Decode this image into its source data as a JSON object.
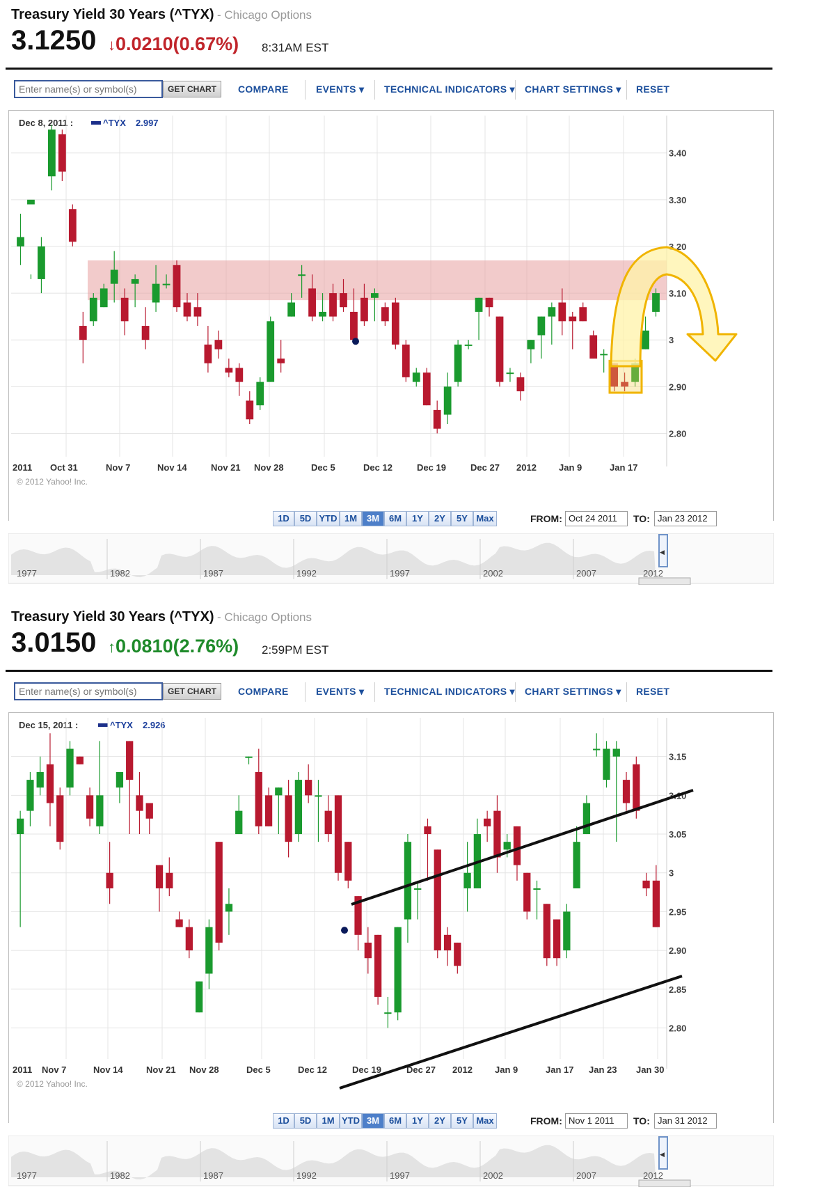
{
  "panels": [
    {
      "title": "Treasury Yield 30 Years (^TYX)",
      "source": "- Chicago Options",
      "price": "3.1250",
      "change_arrow": "↓",
      "change": "0.0210(0.67%)",
      "change_color": "#c0242a",
      "time": "8:31AM EST",
      "toolbar": {
        "search_placeholder": "Enter name(s) or symbol(s)",
        "get_chart": "GET CHART",
        "compare": "COMPARE",
        "events": "EVENTS ▾",
        "technical": "TECHNICAL INDICATORS ▾",
        "settings": "CHART SETTINGS ▾",
        "reset": "RESET"
      },
      "info_date": "Dec 8, 2011 :",
      "info_symbol": "^TYX",
      "info_value": "2.997",
      "copyright": "© 2012 Yahoo! Inc.",
      "x_labels": [
        "2011",
        "Oct 31",
        "Nov 7",
        "Nov 14",
        "Nov 21",
        "Nov 28",
        "Dec 5",
        "Dec 12",
        "Dec 19",
        "Dec 27",
        "2012",
        "Jan 9",
        "Jan 17"
      ],
      "y_ticks": [
        "3.40",
        "3.30",
        "3.20",
        "3.10",
        "3",
        "2.90",
        "2.80"
      ],
      "range_buttons": [
        "1D",
        "5D",
        "YTD",
        "1M",
        "3M",
        "6M",
        "1Y",
        "2Y",
        "5Y",
        "Max"
      ],
      "active_range": "3M",
      "from_label": "FROM:",
      "from_date": "Oct 24 2011",
      "to_label": "TO:",
      "to_date": "Jan 23 2012",
      "nav_years": [
        "1977",
        "1982",
        "1987",
        "1992",
        "1997",
        "2002",
        "2007",
        "2012"
      ]
    },
    {
      "title": "Treasury Yield 30 Years (^TYX)",
      "source": "- Chicago Options",
      "price": "3.0150",
      "change_arrow": "↑",
      "change": "0.0810(2.76%)",
      "change_color": "#1e8a2a",
      "time": "2:59PM EST",
      "toolbar": {
        "search_placeholder": "Enter name(s) or symbol(s)",
        "get_chart": "GET CHART",
        "compare": "COMPARE",
        "events": "EVENTS ▾",
        "technical": "TECHNICAL INDICATORS ▾",
        "settings": "CHART SETTINGS ▾",
        "reset": "RESET"
      },
      "info_date": "Dec 15, 2011 :",
      "info_symbol": "^TYX",
      "info_value": "2.926",
      "copyright": "© 2012 Yahoo! Inc.",
      "x_labels": [
        "2011",
        "Nov 7",
        "Nov 14",
        "Nov 21",
        "Nov 28",
        "Dec 5",
        "Dec 12",
        "Dec 19",
        "Dec 27",
        "2012",
        "Jan 9",
        "Jan 17",
        "Jan 23",
        "Jan 30"
      ],
      "y_ticks": [
        "3.15",
        "3.10",
        "3.05",
        "3",
        "2.95",
        "2.90",
        "2.85",
        "2.80"
      ],
      "range_buttons": [
        "1D",
        "5D",
        "1M",
        "YTD",
        "3M",
        "6M",
        "1Y",
        "2Y",
        "5Y",
        "Max"
      ],
      "active_range": "3M",
      "from_label": "FROM:",
      "from_date": "Nov 1 2011",
      "to_label": "TO:",
      "to_date": "Jan 31 2012",
      "nav_years": [
        "1977",
        "1982",
        "1987",
        "1992",
        "1997",
        "2002",
        "2007",
        "2012"
      ]
    }
  ],
  "colors": {
    "up": "#1a9a2e",
    "down": "#b8192f",
    "resistance_band": "#e8a0a0",
    "arrow": "#f0b400",
    "accent": "#1c4f9c"
  },
  "chart_data": [
    {
      "type": "candlestick",
      "x_range": [
        "2011-10-24",
        "2012-01-23"
      ],
      "y_range": [
        2.75,
        3.48
      ],
      "resistance_band": [
        3.085,
        3.17
      ],
      "candles": [
        [
          3.2,
          3.22,
          3.27,
          3.16
        ],
        [
          3.29,
          3.3,
          3.14,
          3.13
        ],
        [
          3.13,
          3.2,
          3.22,
          3.1
        ],
        [
          3.35,
          3.45,
          3.46,
          3.32
        ],
        [
          3.44,
          3.36,
          3.45,
          3.34
        ],
        [
          3.28,
          3.21,
          3.29,
          3.2
        ],
        [
          3.03,
          3.0,
          3.06,
          2.95
        ],
        [
          3.04,
          3.09,
          3.1,
          3.03
        ],
        [
          3.07,
          3.11,
          3.12,
          3.07
        ],
        [
          3.12,
          3.15,
          3.19,
          3.08
        ],
        [
          3.09,
          3.04,
          3.11,
          3.01
        ],
        [
          3.12,
          3.13,
          3.14,
          3.07
        ],
        [
          3.03,
          3.0,
          3.07,
          2.98
        ],
        [
          3.08,
          3.12,
          3.16,
          3.06
        ],
        [
          3.12,
          3.12,
          3.14,
          3.11
        ],
        [
          3.16,
          3.07,
          3.17,
          3.06
        ],
        [
          3.08,
          3.05,
          3.1,
          3.04
        ],
        [
          3.07,
          3.05,
          3.1,
          3.03
        ],
        [
          2.99,
          2.95,
          3.03,
          2.93
        ],
        [
          3.0,
          2.98,
          3.02,
          2.96
        ],
        [
          2.94,
          2.93,
          2.96,
          2.92
        ],
        [
          2.94,
          2.91,
          2.95,
          2.88
        ],
        [
          2.87,
          2.83,
          2.89,
          2.82
        ],
        [
          2.86,
          2.91,
          2.92,
          2.85
        ],
        [
          2.91,
          3.04,
          3.05,
          2.91
        ],
        [
          2.96,
          2.95,
          3.0,
          2.93
        ],
        [
          3.05,
          3.08,
          3.1,
          3.05
        ],
        [
          3.14,
          3.14,
          3.16,
          3.09
        ],
        [
          3.11,
          3.05,
          3.14,
          3.04
        ],
        [
          3.05,
          3.06,
          3.1,
          3.04
        ],
        [
          3.1,
          3.05,
          3.12,
          3.04
        ],
        [
          3.1,
          3.07,
          3.13,
          3.06
        ],
        [
          3.06,
          3.0,
          3.11,
          3.0
        ],
        [
          3.09,
          3.04,
          3.12,
          3.03
        ],
        [
          3.09,
          3.1,
          3.11,
          3.04
        ],
        [
          3.07,
          3.04,
          3.08,
          3.03
        ],
        [
          3.08,
          2.99,
          3.09,
          2.98
        ],
        [
          2.99,
          2.92,
          3.0,
          2.91
        ],
        [
          2.91,
          2.93,
          2.94,
          2.9
        ],
        [
          2.93,
          2.86,
          2.94,
          2.86
        ],
        [
          2.85,
          2.81,
          2.87,
          2.8
        ],
        [
          2.84,
          2.9,
          2.93,
          2.82
        ],
        [
          2.91,
          2.99,
          3.0,
          2.9
        ],
        [
          2.99,
          2.99,
          3.0,
          2.98
        ],
        [
          3.06,
          3.09,
          3.09,
          3.0
        ],
        [
          3.09,
          3.07,
          3.09,
          3.05
        ],
        [
          3.05,
          2.91,
          3.05,
          2.9
        ],
        [
          2.93,
          2.93,
          2.94,
          2.91
        ],
        [
          2.92,
          2.89,
          2.93,
          2.87
        ],
        [
          2.98,
          3.0,
          3.0,
          2.95
        ],
        [
          3.01,
          3.05,
          3.05,
          2.96
        ],
        [
          3.05,
          3.07,
          3.08,
          2.99
        ],
        [
          3.08,
          3.04,
          3.11,
          3.01
        ],
        [
          3.05,
          3.04,
          3.06,
          2.98
        ],
        [
          3.07,
          3.04,
          3.08,
          3.04
        ],
        [
          3.01,
          2.96,
          3.02,
          2.96
        ],
        [
          2.97,
          2.97,
          2.98,
          2.93
        ],
        [
          2.95,
          2.9,
          2.95,
          2.89
        ],
        [
          2.91,
          2.9,
          2.93,
          2.89
        ],
        [
          2.91,
          2.95,
          2.96,
          2.9
        ],
        [
          2.98,
          3.02,
          3.05,
          2.98
        ],
        [
          3.06,
          3.1,
          3.11,
          3.05
        ]
      ]
    },
    {
      "type": "candlestick",
      "x_range": [
        "2011-11-01",
        "2012-01-31"
      ],
      "y_range": [
        2.76,
        3.2
      ],
      "candles": [
        [
          3.05,
          3.07,
          3.08,
          2.93
        ],
        [
          3.08,
          3.12,
          3.13,
          3.06
        ],
        [
          3.11,
          3.13,
          3.15,
          3.1
        ],
        [
          3.14,
          3.09,
          3.18,
          3.06
        ],
        [
          3.1,
          3.04,
          3.11,
          3.03
        ],
        [
          3.11,
          3.16,
          3.17,
          3.1
        ],
        [
          3.15,
          3.14,
          3.15,
          3.14
        ],
        [
          3.1,
          3.07,
          3.11,
          3.06
        ],
        [
          3.06,
          3.1,
          3.17,
          3.05
        ],
        [
          3.0,
          2.98,
          3.04,
          2.96
        ],
        [
          3.11,
          3.13,
          3.13,
          3.09
        ],
        [
          3.17,
          3.12,
          3.17,
          3.05
        ],
        [
          3.1,
          3.08,
          3.13,
          3.05
        ],
        [
          3.09,
          3.07,
          3.09,
          3.05
        ],
        [
          3.01,
          2.98,
          3.01,
          2.95
        ],
        [
          3.0,
          2.98,
          3.02,
          2.97
        ],
        [
          2.94,
          2.93,
          2.95,
          2.93
        ],
        [
          2.93,
          2.9,
          2.94,
          2.89
        ],
        [
          2.82,
          2.86,
          2.86,
          2.82
        ],
        [
          2.87,
          2.93,
          2.94,
          2.85
        ],
        [
          3.04,
          2.91,
          3.04,
          2.9
        ],
        [
          2.95,
          2.96,
          2.98,
          2.92
        ],
        [
          3.05,
          3.08,
          3.1,
          3.05
        ],
        [
          3.15,
          3.15,
          3.15,
          3.14
        ],
        [
          3.13,
          3.06,
          3.16,
          3.05
        ],
        [
          3.1,
          3.06,
          3.11,
          3.06
        ],
        [
          3.1,
          3.11,
          3.11,
          3.05
        ],
        [
          3.1,
          3.04,
          3.12,
          3.02
        ],
        [
          3.05,
          3.12,
          3.13,
          3.04
        ],
        [
          3.12,
          3.1,
          3.14,
          3.09
        ],
        [
          3.1,
          3.1,
          3.12,
          3.04
        ],
        [
          3.08,
          3.05,
          3.1,
          3.04
        ],
        [
          3.1,
          3.0,
          3.1,
          2.99
        ],
        [
          3.04,
          2.99,
          3.04,
          2.98
        ],
        [
          2.97,
          2.92,
          2.97,
          2.9
        ],
        [
          2.91,
          2.89,
          2.93,
          2.87
        ],
        [
          2.92,
          2.84,
          2.92,
          2.83
        ],
        [
          2.82,
          2.82,
          2.84,
          2.8
        ],
        [
          2.82,
          2.93,
          2.93,
          2.81
        ],
        [
          2.94,
          3.04,
          3.05,
          2.91
        ],
        [
          2.98,
          2.98,
          2.99,
          2.94
        ],
        [
          3.06,
          3.05,
          3.07,
          2.99
        ],
        [
          3.03,
          2.9,
          3.03,
          2.89
        ],
        [
          2.92,
          2.9,
          2.93,
          2.88
        ],
        [
          2.91,
          2.88,
          2.91,
          2.87
        ],
        [
          2.98,
          3.0,
          3.04,
          2.95
        ],
        [
          2.98,
          3.05,
          3.07,
          2.98
        ],
        [
          3.07,
          3.06,
          3.08,
          3.04
        ],
        [
          3.08,
          3.02,
          3.1,
          3.0
        ],
        [
          3.03,
          3.04,
          3.05,
          3.02
        ],
        [
          3.06,
          3.01,
          3.06,
          2.99
        ],
        [
          3.0,
          2.95,
          3.0,
          2.94
        ],
        [
          2.98,
          2.98,
          2.99,
          2.94
        ],
        [
          2.96,
          2.89,
          2.96,
          2.88
        ],
        [
          2.94,
          2.89,
          2.94,
          2.88
        ],
        [
          2.9,
          2.95,
          2.96,
          2.89
        ],
        [
          2.98,
          3.04,
          3.06,
          2.98
        ],
        [
          3.05,
          3.09,
          3.1,
          3.05
        ],
        [
          3.16,
          3.16,
          3.18,
          3.15
        ],
        [
          3.12,
          3.16,
          3.17,
          3.11
        ],
        [
          3.15,
          3.16,
          3.17,
          3.04
        ],
        [
          3.12,
          3.09,
          3.13,
          3.08
        ],
        [
          3.14,
          3.08,
          3.15,
          3.07
        ],
        [
          2.99,
          2.98,
          3.0,
          2.97
        ],
        [
          2.99,
          2.93,
          3.01,
          2.93
        ]
      ]
    }
  ]
}
